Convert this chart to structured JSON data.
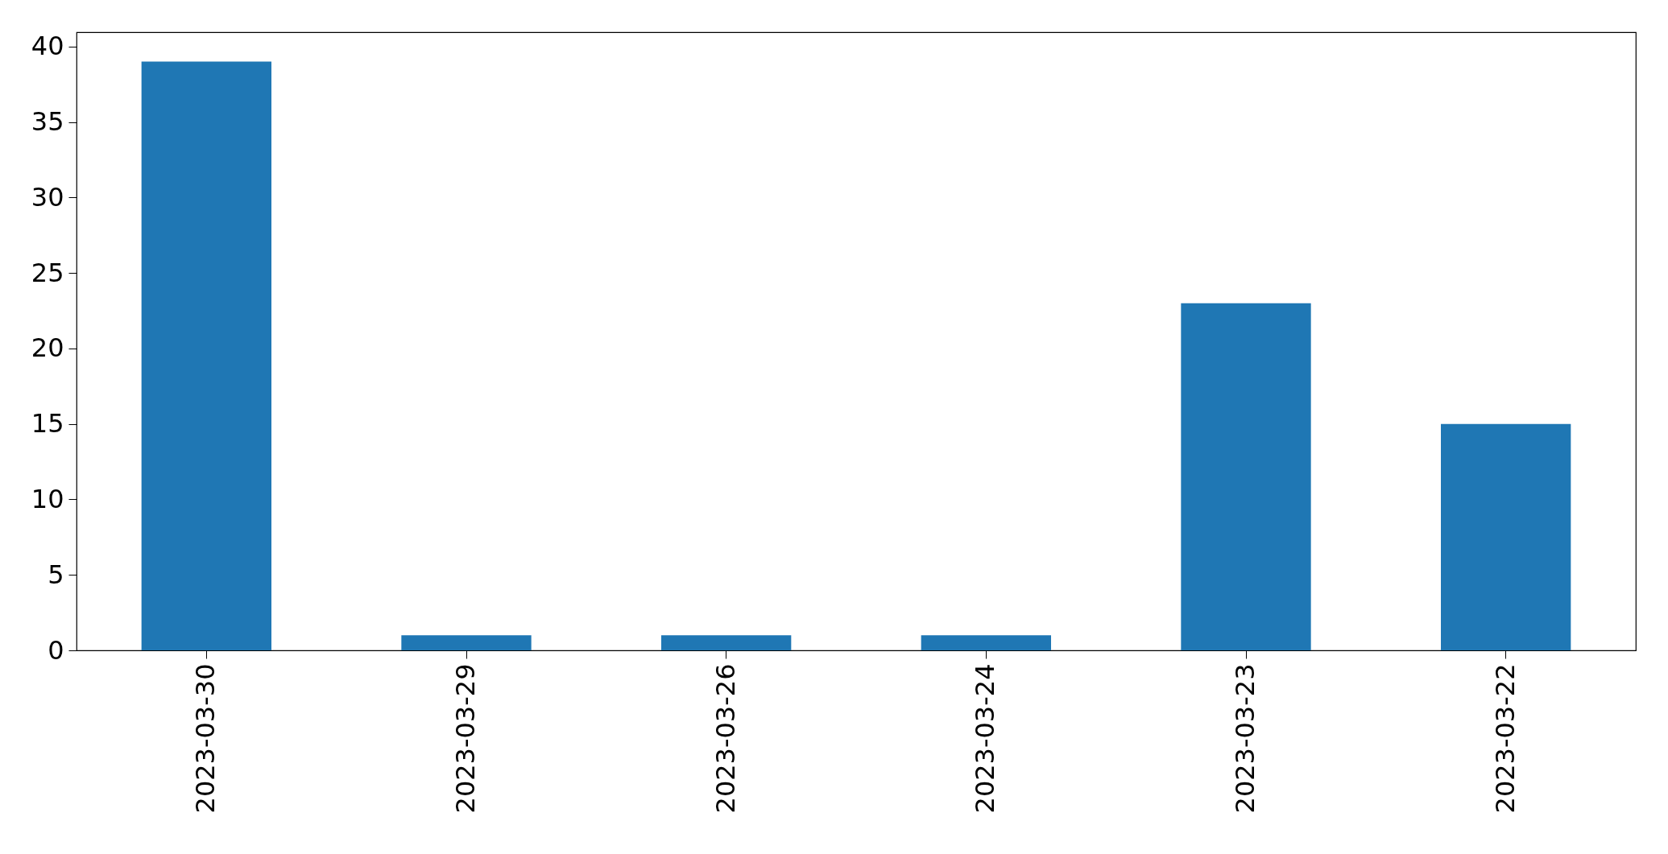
{
  "chart_data": {
    "type": "bar",
    "categories": [
      "2023-03-30",
      "2023-03-29",
      "2023-03-26",
      "2023-03-24",
      "2023-03-23",
      "2023-03-22"
    ],
    "values": [
      39,
      1,
      1,
      1,
      23,
      15
    ],
    "color": "#1f77b4",
    "ylim": [
      0,
      40.95
    ],
    "yticks": [
      0,
      5,
      10,
      15,
      20,
      25,
      30,
      35,
      40
    ]
  }
}
